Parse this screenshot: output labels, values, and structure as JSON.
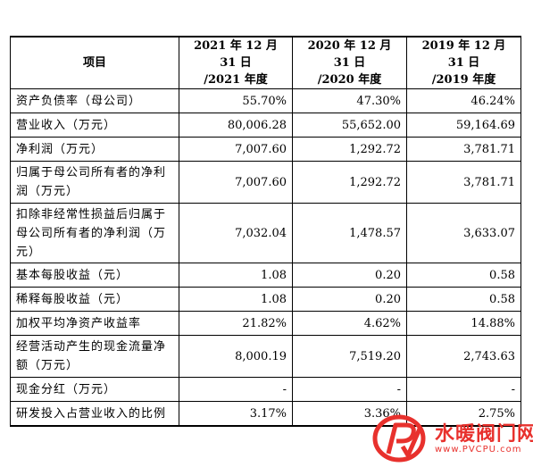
{
  "table": {
    "headers": [
      "项目",
      "2021 年 12 月 31 日\n/2021 年度",
      "2020 年 12 月 31 日\n/2020 年度",
      "2019 年 12 月 31 日\n/2019 年度"
    ],
    "rows": [
      {
        "label": "资产负债率（母公司）",
        "values": [
          "55.70%",
          "47.30%",
          "46.24%"
        ],
        "h": 1
      },
      {
        "label": "营业收入（万元）",
        "values": [
          "80,006.28",
          "55,652.00",
          "59,164.69"
        ],
        "h": 1
      },
      {
        "label": "净利润（万元）",
        "values": [
          "7,007.60",
          "1,292.72",
          "3,781.71"
        ],
        "h": 1
      },
      {
        "label": "归属于母公司所有者的净利润（万元）",
        "values": [
          "7,007.60",
          "1,292.72",
          "3,781.71"
        ],
        "h": 2
      },
      {
        "label": "扣除非经常性损益后归属于母公司所有者的净利润（万元）",
        "values": [
          "7,032.04",
          "1,478.57",
          "3,633.07"
        ],
        "h": 3
      },
      {
        "label": "基本每股收益（元）",
        "values": [
          "1.08",
          "0.20",
          "0.58"
        ],
        "h": 1
      },
      {
        "label": "稀释每股收益（元）",
        "values": [
          "1.08",
          "0.20",
          "0.58"
        ],
        "h": 1
      },
      {
        "label": "加权平均净资产收益率",
        "values": [
          "21.82%",
          "4.62%",
          "14.88%"
        ],
        "h": 1
      },
      {
        "label": "经营活动产生的现金流量净额（万元）",
        "values": [
          "8,000.19",
          "7,519.20",
          "2,743.63"
        ],
        "h": 2
      },
      {
        "label": "现金分红（万元）",
        "values": [
          "-",
          "-",
          "-"
        ],
        "h": 1
      },
      {
        "label": "研发投入占营业收入的比例",
        "values": [
          "3.17%",
          "3.36%",
          "2.75%"
        ],
        "h": 1
      }
    ]
  },
  "watermark": {
    "name": "水暖阀门网",
    "url": "www.PVCPU.com",
    "color": "#e8312d"
  }
}
